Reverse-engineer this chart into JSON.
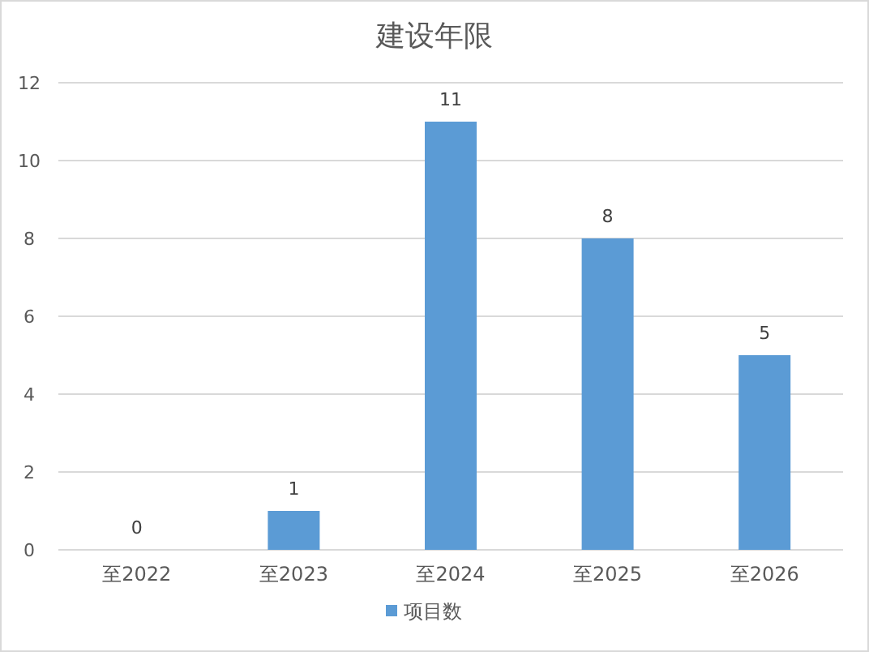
{
  "chart_data": {
    "type": "bar",
    "title": "建设年限",
    "categories": [
      "至2022",
      "至2023",
      "至2024",
      "至2025",
      "至2026"
    ],
    "series": [
      {
        "name": "项目数",
        "color": "#5b9bd5",
        "values": [
          0,
          1,
          11,
          8,
          5
        ]
      }
    ],
    "ylim": [
      0,
      12
    ],
    "yticks": [
      0,
      2,
      4,
      6,
      8,
      10,
      12
    ],
    "grid": "y",
    "legend": "bottom",
    "data_labels": true
  }
}
